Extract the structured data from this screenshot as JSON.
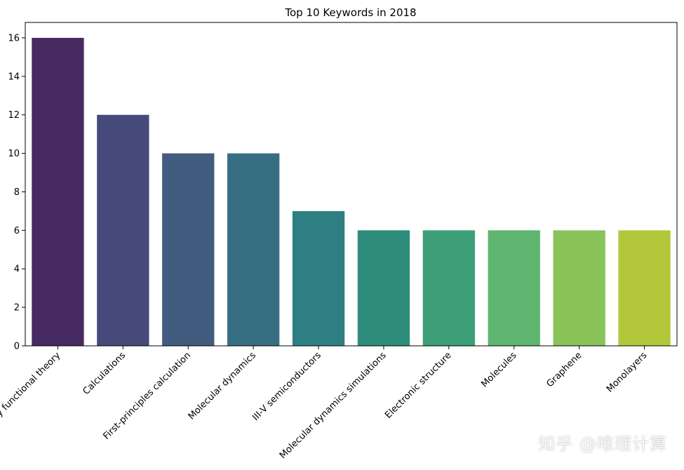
{
  "chart_data": {
    "type": "bar",
    "title": "Top 10 Keywords in 2018",
    "xlabel": "",
    "ylabel": "",
    "categories": [
      "Density functional theory",
      "Calculations",
      "First-principles calculation",
      "Molecular dynamics",
      "III-V semiconductors",
      "Molecular dynamics simulations",
      "Electronic structure",
      "Molecules",
      "Graphene",
      "Monolayers"
    ],
    "values": [
      16,
      12,
      10,
      10,
      7,
      6,
      6,
      6,
      6,
      6
    ],
    "colors": [
      "#482a63",
      "#464a7b",
      "#425c80",
      "#386e82",
      "#2e7f83",
      "#2e8c7b",
      "#3d9f78",
      "#5fb56f",
      "#89c35a",
      "#b2c83a"
    ],
    "ylim": [
      0,
      16.8
    ],
    "yticks": [
      0,
      2,
      4,
      6,
      8,
      10,
      12,
      14,
      16
    ],
    "grid": false
  },
  "watermark": "知乎 @唯理计算"
}
